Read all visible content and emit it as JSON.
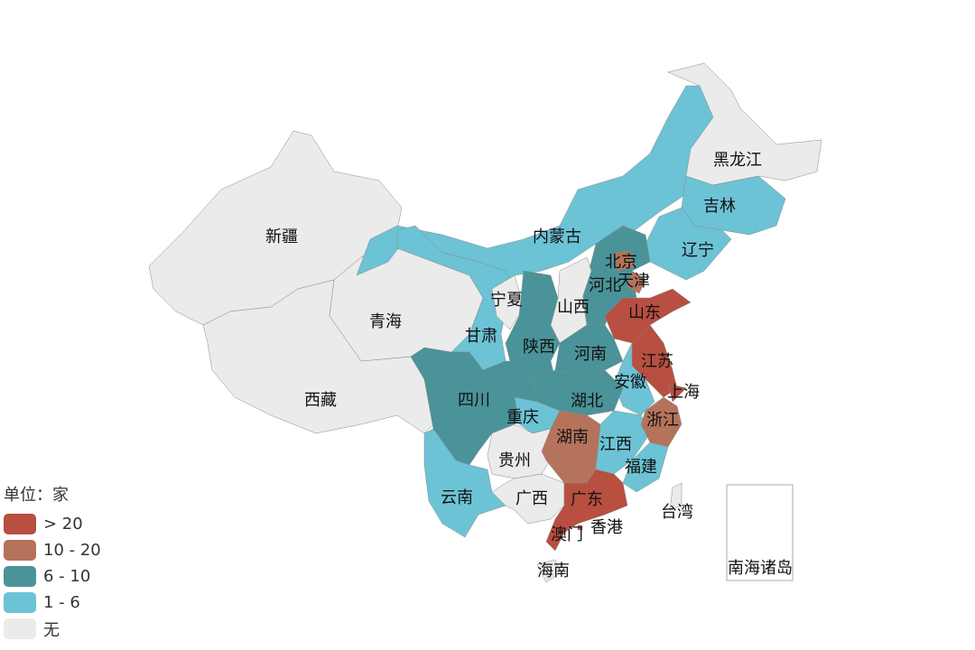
{
  "chart_data": {
    "type": "choropleth",
    "legend": {
      "title": "单位：家",
      "placement": "bottom-left",
      "bins": [
        {
          "label": "> 20",
          "color": "#b84f41"
        },
        {
          "label": "10 - 20",
          "color": "#b5735b"
        },
        {
          "label": "6 - 10",
          "color": "#4a9399"
        },
        {
          "label": "1 - 6",
          "color": "#6cc3d5"
        },
        {
          "label": "无",
          "color": "#ebebeb"
        }
      ]
    },
    "regions": [
      {
        "name": "新疆",
        "bin": "无"
      },
      {
        "name": "西藏",
        "bin": "无"
      },
      {
        "name": "青海",
        "bin": "无"
      },
      {
        "name": "内蒙古",
        "bin": "1 - 6"
      },
      {
        "name": "甘肃",
        "bin": "1 - 6"
      },
      {
        "name": "宁夏",
        "bin": "无"
      },
      {
        "name": "黑龙江",
        "bin": "无"
      },
      {
        "name": "吉林",
        "bin": "1 - 6"
      },
      {
        "name": "辽宁",
        "bin": "1 - 6"
      },
      {
        "name": "河北",
        "bin": "6 - 10"
      },
      {
        "name": "北京",
        "bin": "10 - 20"
      },
      {
        "name": "天津",
        "bin": "10 - 20"
      },
      {
        "name": "山西",
        "bin": "无"
      },
      {
        "name": "山东",
        "bin": "> 20"
      },
      {
        "name": "陕西",
        "bin": "6 - 10"
      },
      {
        "name": "河南",
        "bin": "6 - 10"
      },
      {
        "name": "江苏",
        "bin": "> 20"
      },
      {
        "name": "安徽",
        "bin": "1 - 6"
      },
      {
        "name": "上海",
        "bin": "> 20"
      },
      {
        "name": "湖北",
        "bin": "6 - 10"
      },
      {
        "name": "四川",
        "bin": "6 - 10"
      },
      {
        "name": "重庆",
        "bin": "1 - 6"
      },
      {
        "name": "云南",
        "bin": "1 - 6"
      },
      {
        "name": "贵州",
        "bin": "无"
      },
      {
        "name": "湖南",
        "bin": "10 - 20"
      },
      {
        "name": "江西",
        "bin": "1 - 6"
      },
      {
        "name": "浙江",
        "bin": "10 - 20"
      },
      {
        "name": "福建",
        "bin": "1 - 6"
      },
      {
        "name": "广西",
        "bin": "无"
      },
      {
        "name": "广东",
        "bin": "> 20"
      },
      {
        "name": "海南",
        "bin": "无"
      },
      {
        "name": "台湾",
        "bin": "无"
      },
      {
        "name": "香港",
        "bin": "无"
      },
      {
        "name": "澳门",
        "bin": "> 20"
      },
      {
        "name": "南海诸岛",
        "bin": "无"
      }
    ]
  }
}
